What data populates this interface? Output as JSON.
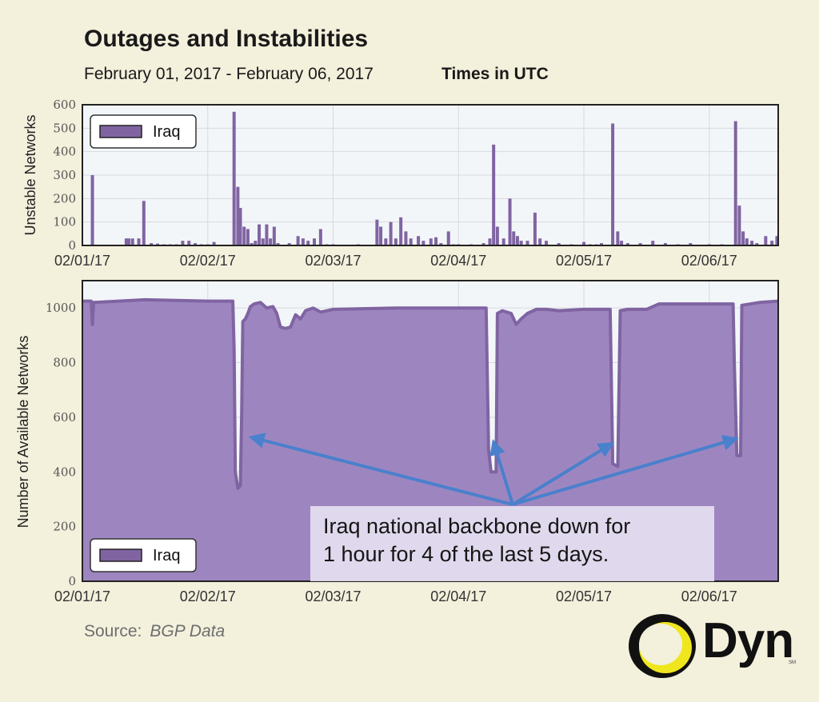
{
  "header": {
    "title": "Outages and Instabilities",
    "date_range": "February 01, 2017 - February 06, 2017",
    "timezone": "Times in UTC"
  },
  "footer": {
    "source_label": "Source:",
    "source_value": "BGP Data",
    "logo_text": "Dyn",
    "logo_mark": "SM"
  },
  "annotation": {
    "lines": [
      "Iraq national backbone down for",
      "1 hour for 4 of the last 5 days."
    ],
    "points_to_x": [
      1.26,
      3.28,
      4.26,
      5.25
    ]
  },
  "colors": {
    "series": "#8064a2",
    "series_fill": "#9d86c0",
    "arrow": "#4a80cc",
    "plot_bg": "#f3f6f9",
    "logo_yellow": "#f0e61e"
  },
  "chart_data": [
    {
      "type": "bar",
      "ylabel": "Unstable Networks",
      "xlim": [
        0,
        5.55
      ],
      "ylim": [
        0,
        600
      ],
      "yticks": [
        0,
        100,
        200,
        300,
        400,
        500,
        600
      ],
      "xticks": [
        {
          "x": 0,
          "label": "02/01/17"
        },
        {
          "x": 1,
          "label": "02/02/17"
        },
        {
          "x": 2,
          "label": "02/03/17"
        },
        {
          "x": 3,
          "label": "02/04/17"
        },
        {
          "x": 4,
          "label": "02/05/17"
        },
        {
          "x": 5,
          "label": "02/06/17"
        }
      ],
      "grid": true,
      "legend": {
        "position": "top-left",
        "entries": [
          "Iraq"
        ]
      },
      "series": [
        {
          "name": "Iraq",
          "points": [
            [
              0.08,
              300
            ],
            [
              0.35,
              30
            ],
            [
              0.37,
              30
            ],
            [
              0.4,
              30
            ],
            [
              0.45,
              30
            ],
            [
              0.49,
              190
            ],
            [
              0.55,
              10
            ],
            [
              0.6,
              8
            ],
            [
              0.65,
              5
            ],
            [
              0.7,
              5
            ],
            [
              0.75,
              5
            ],
            [
              0.8,
              20
            ],
            [
              0.85,
              20
            ],
            [
              0.9,
              10
            ],
            [
              0.95,
              5
            ],
            [
              1.0,
              5
            ],
            [
              1.05,
              15
            ],
            [
              1.21,
              570
            ],
            [
              1.24,
              250
            ],
            [
              1.26,
              160
            ],
            [
              1.29,
              80
            ],
            [
              1.32,
              70
            ],
            [
              1.35,
              10
            ],
            [
              1.38,
              20
            ],
            [
              1.41,
              90
            ],
            [
              1.44,
              30
            ],
            [
              1.47,
              90
            ],
            [
              1.5,
              30
            ],
            [
              1.53,
              80
            ],
            [
              1.56,
              10
            ],
            [
              1.65,
              10
            ],
            [
              1.72,
              40
            ],
            [
              1.76,
              30
            ],
            [
              1.8,
              20
            ],
            [
              1.85,
              30
            ],
            [
              1.9,
              70
            ],
            [
              1.95,
              5
            ],
            [
              2.0,
              5
            ],
            [
              2.2,
              5
            ],
            [
              2.35,
              110
            ],
            [
              2.38,
              80
            ],
            [
              2.42,
              30
            ],
            [
              2.46,
              100
            ],
            [
              2.5,
              30
            ],
            [
              2.54,
              120
            ],
            [
              2.58,
              60
            ],
            [
              2.62,
              30
            ],
            [
              2.68,
              40
            ],
            [
              2.72,
              20
            ],
            [
              2.78,
              30
            ],
            [
              2.82,
              35
            ],
            [
              2.86,
              10
            ],
            [
              2.92,
              60
            ],
            [
              2.96,
              5
            ],
            [
              3.0,
              5
            ],
            [
              3.1,
              5
            ],
            [
              3.2,
              10
            ],
            [
              3.25,
              30
            ],
            [
              3.28,
              430
            ],
            [
              3.31,
              80
            ],
            [
              3.36,
              30
            ],
            [
              3.41,
              200
            ],
            [
              3.44,
              60
            ],
            [
              3.47,
              40
            ],
            [
              3.5,
              20
            ],
            [
              3.55,
              20
            ],
            [
              3.61,
              140
            ],
            [
              3.65,
              30
            ],
            [
              3.7,
              20
            ],
            [
              3.8,
              10
            ],
            [
              3.9,
              5
            ],
            [
              4.0,
              15
            ],
            [
              4.05,
              5
            ],
            [
              4.1,
              5
            ],
            [
              4.14,
              10
            ],
            [
              4.23,
              520
            ],
            [
              4.27,
              60
            ],
            [
              4.3,
              20
            ],
            [
              4.35,
              10
            ],
            [
              4.45,
              10
            ],
            [
              4.55,
              20
            ],
            [
              4.65,
              10
            ],
            [
              4.75,
              5
            ],
            [
              4.85,
              10
            ],
            [
              5.0,
              5
            ],
            [
              5.1,
              5
            ],
            [
              5.21,
              530
            ],
            [
              5.24,
              170
            ],
            [
              5.27,
              60
            ],
            [
              5.3,
              30
            ],
            [
              5.34,
              20
            ],
            [
              5.38,
              10
            ],
            [
              5.45,
              40
            ],
            [
              5.5,
              20
            ],
            [
              5.54,
              40
            ]
          ]
        }
      ]
    },
    {
      "type": "area",
      "ylabel": "Number of Available Networks",
      "xlim": [
        0,
        5.55
      ],
      "ylim": [
        0,
        1100
      ],
      "yticks": [
        0,
        200,
        400,
        600,
        800,
        1000
      ],
      "xticks": [
        {
          "x": 0,
          "label": "02/01/17"
        },
        {
          "x": 1,
          "label": "02/02/17"
        },
        {
          "x": 2,
          "label": "02/03/17"
        },
        {
          "x": 3,
          "label": "02/04/17"
        },
        {
          "x": 4,
          "label": "02/05/17"
        },
        {
          "x": 5,
          "label": "02/06/17"
        }
      ],
      "grid": true,
      "legend": {
        "position": "bottom-left",
        "entries": [
          "Iraq"
        ]
      },
      "series": [
        {
          "name": "Iraq",
          "points": [
            [
              0.0,
              1025
            ],
            [
              0.07,
              1025
            ],
            [
              0.08,
              940
            ],
            [
              0.09,
              1020
            ],
            [
              0.5,
              1030
            ],
            [
              1.0,
              1025
            ],
            [
              1.2,
              1025
            ],
            [
              1.21,
              850
            ],
            [
              1.22,
              400
            ],
            [
              1.24,
              340
            ],
            [
              1.26,
              350
            ],
            [
              1.27,
              600
            ],
            [
              1.28,
              950
            ],
            [
              1.3,
              960
            ],
            [
              1.32,
              980
            ],
            [
              1.34,
              1005
            ],
            [
              1.37,
              1015
            ],
            [
              1.42,
              1020
            ],
            [
              1.47,
              1000
            ],
            [
              1.52,
              1005
            ],
            [
              1.55,
              980
            ],
            [
              1.58,
              930
            ],
            [
              1.62,
              925
            ],
            [
              1.66,
              930
            ],
            [
              1.7,
              975
            ],
            [
              1.74,
              960
            ],
            [
              1.78,
              990
            ],
            [
              1.84,
              1000
            ],
            [
              1.9,
              985
            ],
            [
              2.0,
              995
            ],
            [
              2.5,
              1000
            ],
            [
              3.0,
              1000
            ],
            [
              3.22,
              1000
            ],
            [
              3.24,
              480
            ],
            [
              3.26,
              400
            ],
            [
              3.3,
              400
            ],
            [
              3.31,
              980
            ],
            [
              3.35,
              990
            ],
            [
              3.42,
              980
            ],
            [
              3.46,
              940
            ],
            [
              3.5,
              960
            ],
            [
              3.55,
              980
            ],
            [
              3.62,
              995
            ],
            [
              3.7,
              995
            ],
            [
              3.8,
              990
            ],
            [
              4.0,
              995
            ],
            [
              4.21,
              995
            ],
            [
              4.23,
              430
            ],
            [
              4.27,
              420
            ],
            [
              4.29,
              990
            ],
            [
              4.35,
              995
            ],
            [
              4.5,
              995
            ],
            [
              4.6,
              1015
            ],
            [
              4.8,
              1015
            ],
            [
              5.0,
              1015
            ],
            [
              5.19,
              1015
            ],
            [
              5.2,
              800
            ],
            [
              5.22,
              460
            ],
            [
              5.25,
              460
            ],
            [
              5.26,
              1010
            ],
            [
              5.4,
              1020
            ],
            [
              5.55,
              1025
            ]
          ]
        }
      ]
    }
  ]
}
